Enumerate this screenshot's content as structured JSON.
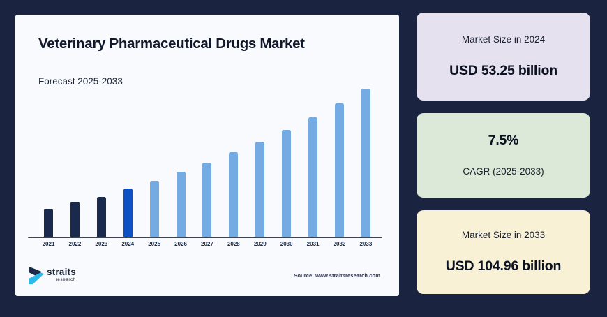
{
  "page": {
    "background_color": "#1a2440"
  },
  "chart_panel": {
    "title": "Veterinary Pharmaceutical Drugs Market",
    "subtitle": "Forecast 2025-2033",
    "source": "Source: www.straitsresearch.com",
    "background_color": "#f8fafd",
    "logo": {
      "name": "straits",
      "sub": "research",
      "icon_dark_color": "#1b2a4a",
      "icon_cyan_color": "#29b9ea"
    }
  },
  "chart_data": {
    "type": "bar",
    "title": "Veterinary Pharmaceutical Drugs Market",
    "subtitle": "Forecast 2025-2033",
    "unit": "USD billion",
    "categories": [
      "2021",
      "2022",
      "2023",
      "2024",
      "2025",
      "2026",
      "2027",
      "2028",
      "2029",
      "2030",
      "2031",
      "2032",
      "2033"
    ],
    "values": [
      42.8,
      46.6,
      48.9,
      53.25,
      57.4,
      61.9,
      66.8,
      72.0,
      77.7,
      83.8,
      90.3,
      97.4,
      104.96
    ],
    "color_keys": [
      "historical",
      "historical",
      "historical",
      "base_year",
      "forecast",
      "forecast",
      "forecast",
      "forecast",
      "forecast",
      "forecast",
      "forecast",
      "forecast",
      "forecast"
    ],
    "series_colors": {
      "historical": "#1a2a4c",
      "base_year": "#0d52c4",
      "forecast": "#74abe2"
    },
    "xlabel": "",
    "ylabel": "",
    "ylim": [
      28.5,
      105
    ],
    "grid": false,
    "legend": false,
    "axis_color": "#3d4350"
  },
  "cards": [
    {
      "background_color": "#e6e1ef",
      "lines": [
        {
          "kind": "label",
          "text": "Market Size in 2024"
        },
        {
          "kind": "value",
          "text": "USD 53.25 billion"
        }
      ]
    },
    {
      "background_color": "#dde9d8",
      "lines": [
        {
          "kind": "value",
          "text": "7.5%"
        },
        {
          "kind": "label",
          "text": "CAGR (2025-2033)"
        }
      ]
    },
    {
      "background_color": "#f8f1d6",
      "lines": [
        {
          "kind": "label",
          "text": "Market Size in 2033"
        },
        {
          "kind": "value",
          "text": "USD 104.96 billion"
        }
      ]
    }
  ]
}
